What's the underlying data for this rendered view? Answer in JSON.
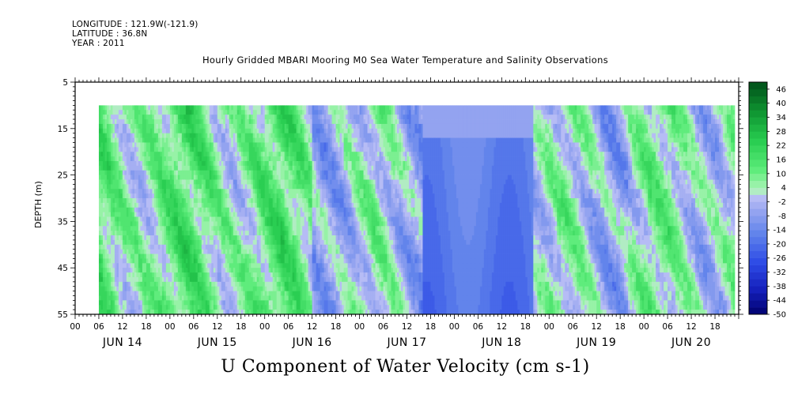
{
  "header": {
    "longitude": "LONGITUDE : 121.9W(-121.9)",
    "latitude": "LATITUDE : 36.8N",
    "year": "YEAR : 2011"
  },
  "plot_title": "Hourly Gridded MBARI Mooring M0 Sea Water Temperature and Salinity Observations",
  "bottom_title": "U Component of Water Velocity (cm s-1)",
  "chart_data": {
    "type": "heatmap",
    "ylabel": "DEPTH (m)",
    "y_axis": {
      "ticks": [
        5,
        15,
        25,
        35,
        45,
        55
      ],
      "range": [
        5,
        55
      ],
      "inverted": true
    },
    "x_axis": {
      "hour_labels": [
        "00",
        "06",
        "12",
        "18",
        "00",
        "06",
        "12",
        "18",
        "00",
        "06",
        "12",
        "18",
        "00",
        "06",
        "12",
        "18",
        "00",
        "06",
        "12",
        "18",
        "00",
        "06",
        "12",
        "18",
        "00",
        "06",
        "12",
        "18"
      ],
      "day_labels": [
        "JUN 14",
        "JUN 15",
        "JUN 16",
        "JUN 17",
        "JUN 18",
        "JUN 19",
        "JUN 20"
      ],
      "range_hours": [
        0,
        168
      ]
    },
    "data_extent": {
      "hour_start": 6,
      "hour_end": 167,
      "depth_start": 10,
      "depth_end": 55
    },
    "colorbar": {
      "labels": [
        "46",
        "40",
        "34",
        "28",
        "22",
        "16",
        "10",
        "4",
        "-2",
        "-8",
        "-14",
        "-20",
        "-26",
        "-32",
        "-38",
        "-44",
        "-50"
      ],
      "min": -50,
      "max": 49,
      "step": 3
    },
    "grid": false
  }
}
